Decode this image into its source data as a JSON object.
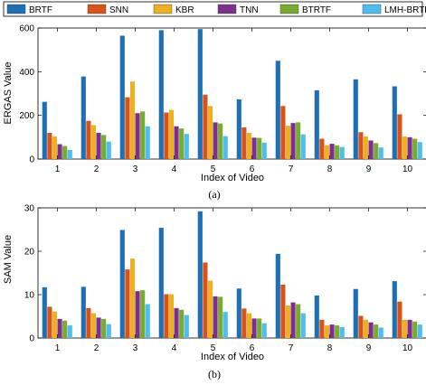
{
  "legend": [
    "BRTF",
    "SNN",
    "KBR",
    "TNN",
    "BTRTF",
    "LMH-BRTF"
  ],
  "colors": {
    "BRTF": "#1f6fb4",
    "SNN": "#d95319",
    "KBR": "#edb120",
    "TNN": "#7e2f8e",
    "BTRTF": "#77ac30",
    "LMH-BRTF": "#4dbeee"
  },
  "chart_data": [
    {
      "type": "bar",
      "panel": "(a)",
      "xlabel": "Index of Video",
      "ylabel": "ERGAS Value",
      "categories": [
        "1",
        "2",
        "3",
        "4",
        "5",
        "6",
        "7",
        "8",
        "9",
        "10"
      ],
      "ylim": [
        0,
        600
      ],
      "yticks": [
        0,
        200,
        400,
        600
      ],
      "series": [
        {
          "name": "BRTF",
          "values": [
            262,
            378,
            565,
            590,
            595,
            273,
            450,
            315,
            365,
            333
          ]
        },
        {
          "name": "SNN",
          "values": [
            120,
            175,
            283,
            213,
            295,
            145,
            243,
            93,
            123,
            205
          ]
        },
        {
          "name": "KBR",
          "values": [
            103,
            155,
            355,
            225,
            243,
            120,
            153,
            63,
            103,
            103
          ]
        },
        {
          "name": "TNN",
          "values": [
            68,
            120,
            210,
            150,
            168,
            98,
            165,
            70,
            85,
            100
          ]
        },
        {
          "name": "BTRTF",
          "values": [
            60,
            110,
            218,
            140,
            163,
            97,
            168,
            63,
            73,
            93
          ]
        },
        {
          "name": "LMH-BRTF",
          "values": [
            42,
            80,
            150,
            115,
            105,
            75,
            113,
            55,
            53,
            78
          ]
        }
      ]
    },
    {
      "type": "bar",
      "panel": "(b)",
      "xlabel": "Index of Video",
      "ylabel": "SAM Value",
      "categories": [
        "1",
        "2",
        "3",
        "4",
        "5",
        "6",
        "7",
        "8",
        "9",
        "10"
      ],
      "ylim": [
        0,
        30
      ],
      "yticks": [
        0,
        10,
        20,
        30
      ],
      "series": [
        {
          "name": "BRTF",
          "values": [
            11.7,
            11.8,
            24.9,
            25.4,
            29.2,
            11.4,
            19.4,
            9.8,
            11.3,
            13.1
          ]
        },
        {
          "name": "SNN",
          "values": [
            7.2,
            6.9,
            15.8,
            10.1,
            17.4,
            6.8,
            12.3,
            4.2,
            5.1,
            8.4
          ]
        },
        {
          "name": "KBR",
          "values": [
            6.1,
            5.7,
            18.3,
            10.1,
            13.2,
            5.7,
            7.5,
            2.9,
            4.2,
            4.2
          ]
        },
        {
          "name": "TNN",
          "values": [
            4.4,
            4.7,
            10.8,
            6.9,
            9.6,
            4.5,
            8.2,
            3.1,
            3.6,
            4.2
          ]
        },
        {
          "name": "BTRTF",
          "values": [
            4.0,
            4.4,
            11.0,
            6.5,
            9.5,
            4.5,
            7.8,
            2.9,
            3.1,
            3.8
          ]
        },
        {
          "name": "LMH-BRTF",
          "values": [
            2.9,
            3.2,
            7.8,
            5.3,
            6.0,
            3.4,
            5.7,
            2.5,
            2.4,
            3.1
          ]
        }
      ]
    }
  ]
}
